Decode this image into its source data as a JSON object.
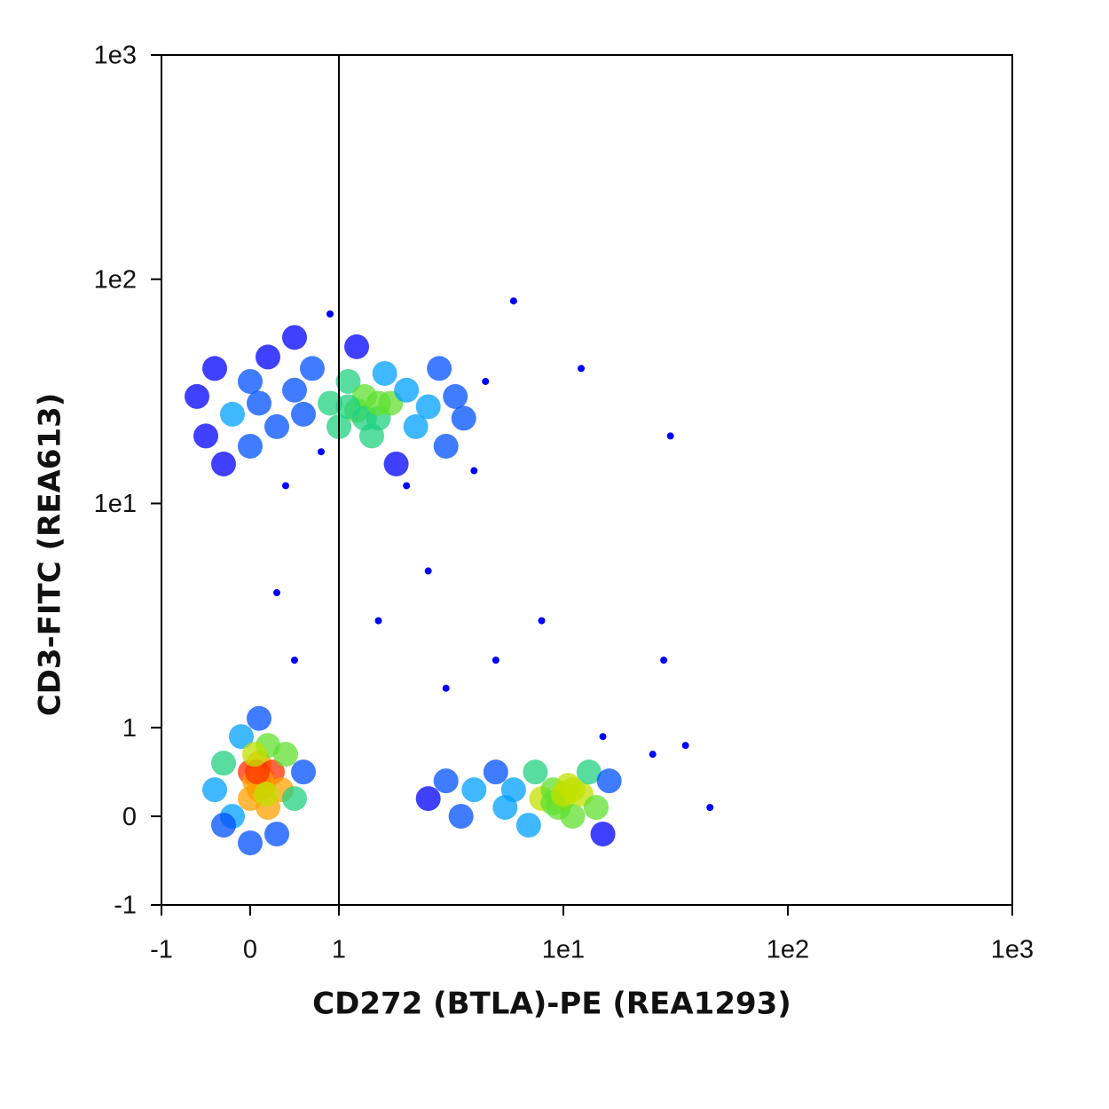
{
  "chart_data": {
    "type": "scatter",
    "x_label": "CD272 (BTLA)-PE (REA1293)",
    "y_label": "CD3-FITC (REA613)",
    "xscale": "biexponential",
    "yscale": "biexponential",
    "xlim": [
      -1,
      1000
    ],
    "ylim": [
      -1,
      1000
    ],
    "xticks": [
      -1,
      0,
      1,
      {
        "value": 10,
        "label": "1e1"
      },
      {
        "value": 100,
        "label": "1e2"
      },
      {
        "value": 1000,
        "label": "1e3"
      }
    ],
    "yticks": [
      -1,
      0,
      1,
      {
        "value": 10,
        "label": "1e1"
      },
      {
        "value": 100,
        "label": "1e2"
      },
      {
        "value": 1000,
        "label": "1e3"
      }
    ],
    "gate_x": 1,
    "color": "#0000ff",
    "x": [
      -0.6,
      -0.5,
      -0.4,
      -0.3,
      -0.2,
      0,
      0,
      0.1,
      0.2,
      0.3,
      0.4,
      0.5,
      0.6,
      0.7,
      0.8,
      0.9,
      1,
      1.1,
      1.2,
      1.3,
      1.4,
      1.5,
      1.6,
      1.7,
      1.8,
      2,
      2.2,
      2.5,
      2.8,
      3,
      3.3,
      3.6,
      4,
      4.5,
      1.2,
      0.5,
      2,
      1.3,
      1.5,
      1.1,
      -0.4,
      -0.3,
      -0.2,
      -0.1,
      0,
      0,
      0.05,
      0.1,
      0.1,
      0.12,
      0.15,
      0.2,
      0.2,
      0.25,
      0.3,
      0.35,
      0.4,
      0.5,
      0.6,
      0.1,
      0,
      -0.3,
      0.13,
      0.08,
      0.18,
      0.05,
      2.5,
      3,
      3.5,
      4,
      5,
      5.5,
      6,
      7,
      7.5,
      8,
      9,
      9.5,
      10,
      10.5,
      11,
      12,
      13,
      14,
      15,
      16,
      9,
      10,
      11,
      1.5,
      2.5,
      0.3,
      0.5,
      3,
      5,
      8,
      15,
      25,
      35,
      45,
      12,
      30,
      6,
      0.9,
      28
    ],
    "y": [
      30,
      20,
      40,
      15,
      25,
      35,
      18,
      28,
      45,
      22,
      12,
      32,
      25,
      40,
      17,
      28,
      22,
      35,
      26,
      30,
      20,
      24,
      38,
      28,
      15,
      32,
      22,
      27,
      40,
      18,
      30,
      24,
      14,
      35,
      50,
      55,
      12,
      24,
      28,
      27,
      0.3,
      0.6,
      0,
      0.9,
      0.2,
      0.5,
      0.4,
      0.3,
      0.6,
      0.45,
      0.35,
      0.1,
      0.8,
      0.5,
      -0.2,
      0.3,
      0.7,
      0.2,
      0.5,
      1.1,
      -0.3,
      -0.1,
      0.4,
      0.5,
      0.25,
      0.7,
      0.2,
      0.4,
      0,
      0.3,
      0.5,
      0.1,
      0.3,
      -0.1,
      0.5,
      0.2,
      0.3,
      0.1,
      0.2,
      0.35,
      0,
      0.25,
      0.5,
      0.1,
      -0.2,
      0.4,
      0.15,
      0.25,
      0.3,
      3,
      5,
      4,
      2,
      1.5,
      2,
      3,
      0.9,
      0.7,
      0.8,
      0.1,
      40,
      20,
      80,
      70,
      2
    ]
  }
}
